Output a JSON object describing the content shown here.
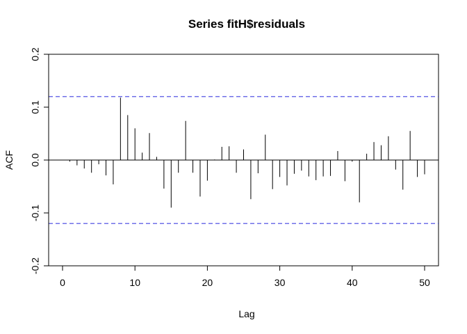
{
  "chart_data": {
    "type": "bar",
    "title": "Series  fitH$residuals",
    "xlabel": "Lag",
    "ylabel": "ACF",
    "xlim": [
      0,
      52
    ],
    "ylim": [
      -0.2,
      0.2
    ],
    "x_ticks": [
      0,
      10,
      20,
      30,
      40,
      50
    ],
    "y_ticks": [
      -0.2,
      -0.1,
      0.0,
      0.1,
      0.2
    ],
    "x_tick_labels": [
      "0",
      "10",
      "20",
      "30",
      "40",
      "50"
    ],
    "y_tick_labels": [
      "-0.2",
      "-0.1",
      "0.0",
      "0.1",
      "0.2"
    ],
    "confidence_bound": 0.12,
    "confidence_line_color": "#4040e0",
    "bar_color": "#000000",
    "lags": [
      1,
      2,
      3,
      4,
      5,
      6,
      7,
      8,
      9,
      10,
      11,
      12,
      13,
      14,
      15,
      16,
      17,
      18,
      19,
      20,
      21,
      22,
      23,
      24,
      25,
      26,
      27,
      28,
      29,
      30,
      31,
      32,
      33,
      34,
      35,
      36,
      37,
      38,
      39,
      40,
      41,
      42,
      43,
      44,
      45,
      46,
      47,
      48,
      49,
      50
    ],
    "acf": [
      -0.003,
      -0.01,
      -0.016,
      -0.024,
      -0.008,
      -0.029,
      -0.046,
      0.118,
      0.085,
      0.06,
      0.014,
      0.051,
      0.006,
      -0.054,
      -0.09,
      -0.024,
      0.074,
      -0.024,
      -0.069,
      -0.039,
      0.001,
      0.025,
      0.026,
      -0.024,
      0.02,
      -0.074,
      -0.025,
      0.048,
      -0.055,
      -0.032,
      -0.048,
      -0.026,
      -0.02,
      -0.031,
      -0.038,
      -0.031,
      -0.03,
      0.017,
      -0.04,
      -0.003,
      -0.08,
      0.012,
      0.034,
      0.028,
      0.045,
      -0.018,
      -0.056,
      0.055,
      -0.032,
      -0.027
    ]
  }
}
